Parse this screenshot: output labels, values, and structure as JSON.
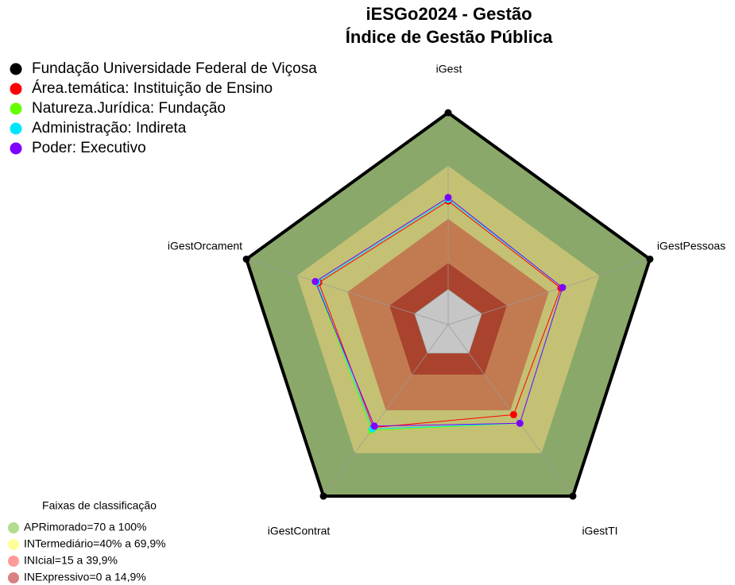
{
  "chart_data": {
    "type": "radar",
    "title": "iESGo2024 - Gestão",
    "subtitle": "Índice de Gestão Pública",
    "categories": [
      "iGest",
      "iGestPessoas",
      "iGestTI",
      "iGestContrat",
      "iGestOrcament"
    ],
    "rlim": [
      -20,
      100
    ],
    "center_color": "#c6c6c6",
    "series": [
      {
        "name": "Fundação Universidade Federal de Viçosa",
        "color": "#000000",
        "values": [
          100,
          100,
          100,
          100,
          100
        ]
      },
      {
        "name": "Área.temática: Instituição de Ensino",
        "color": "#ff0000",
        "values": [
          50,
          47,
          43,
          52,
          57
        ]
      },
      {
        "name": "Natureza.Jurídica: Fundação",
        "color": "#66ff00",
        "values": [
          52,
          48,
          49,
          54,
          59
        ]
      },
      {
        "name": "Administração: Indireta",
        "color": "#00e5ff",
        "values": [
          51,
          48,
          49,
          53,
          58
        ]
      },
      {
        "name": "Poder: Executivo",
        "color": "#8000ff",
        "values": [
          52,
          48,
          49,
          51,
          59
        ]
      }
    ],
    "bands": {
      "title": "Faixas de classificação",
      "items": [
        {
          "label": "APRimorado=70 a 100%",
          "to": 100,
          "color": "#8aa86a",
          "legend_color": "#b3dc8e"
        },
        {
          "label": "INTermediário=40% a 69,9%",
          "to": 69.9,
          "color": "#c4c174",
          "legend_color": "#ffff99"
        },
        {
          "label": "INIcial=15 a 39,9%",
          "to": 39.9,
          "color": "#c27b50",
          "legend_color": "#ff9a9a"
        },
        {
          "label": "INExpressivo=0 a 14,9%",
          "to": 14.9,
          "color": "#a9432d",
          "legend_color": "#d98080"
        }
      ]
    }
  }
}
